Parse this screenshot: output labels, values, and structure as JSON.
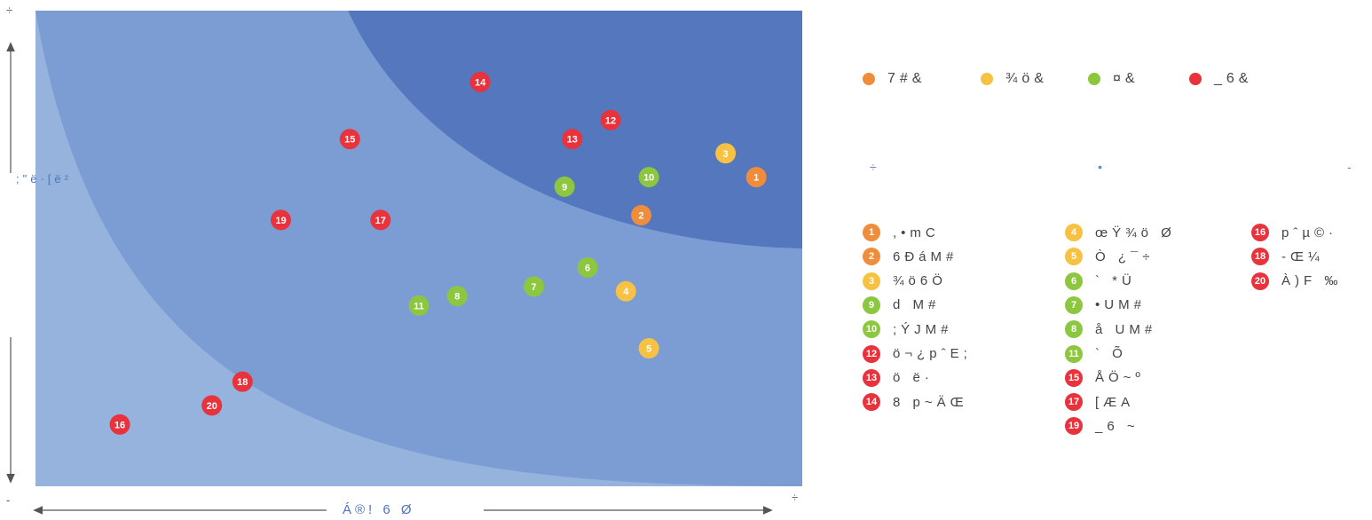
{
  "colors": {
    "orange": "#f08d3a",
    "yellow": "#f7c244",
    "green": "#8dc63f",
    "red": "#e8323c",
    "band_light": "#96b3de",
    "band_mid": "#7b9dd3",
    "band_dark": "#5477be"
  },
  "axis": {
    "y_label": ";\"ë·[ë²",
    "x_label": "Á®! 6 Ø",
    "y_top": "÷",
    "y_bottom": "-",
    "x_right": "÷"
  },
  "zones": {
    "left": "÷",
    "mid": "•",
    "right": "-"
  },
  "categories": [
    {
      "label": "7#&",
      "color": "#f08d3a"
    },
    {
      "label": "¾ö&",
      "color": "#f7c244"
    },
    {
      "label": "¤&",
      "color": "#8dc63f"
    },
    {
      "label": "_6&",
      "color": "#e8323c"
    }
  ],
  "chart_data": {
    "type": "scatter",
    "xlim": [
      0,
      100
    ],
    "ylim": [
      0,
      100
    ],
    "points": [
      {
        "id": "1",
        "x": 94,
        "y": 65,
        "cat": "orange",
        "label": ",•mC"
      },
      {
        "id": "2",
        "x": 79,
        "y": 57,
        "cat": "orange",
        "label": "6ÐáM#"
      },
      {
        "id": "3",
        "x": 90,
        "y": 70,
        "cat": "yellow",
        "label": "¾ö6Ö"
      },
      {
        "id": "4",
        "x": 77,
        "y": 41,
        "cat": "yellow",
        "label": "œŸ¾ö Ø"
      },
      {
        "id": "5",
        "x": 80,
        "y": 29,
        "cat": "yellow",
        "label": "Ò ¿¯÷"
      },
      {
        "id": "6",
        "x": 72,
        "y": 46,
        "cat": "green",
        "label": "` *Ü"
      },
      {
        "id": "7",
        "x": 65,
        "y": 42,
        "cat": "green",
        "label": "•UM#"
      },
      {
        "id": "8",
        "x": 55,
        "y": 40,
        "cat": "green",
        "label": "å UM#"
      },
      {
        "id": "9",
        "x": 69,
        "y": 63,
        "cat": "green",
        "label": "d M#"
      },
      {
        "id": "10",
        "x": 80,
        "y": 65,
        "cat": "green",
        "label": ";ÝJM#"
      },
      {
        "id": "11",
        "x": 50,
        "y": 38,
        "cat": "green",
        "label": "` Õ"
      },
      {
        "id": "12",
        "x": 75,
        "y": 77,
        "cat": "red",
        "label": "ö¬¿pˆE;"
      },
      {
        "id": "13",
        "x": 70,
        "y": 73,
        "cat": "red",
        "label": "ö ë·"
      },
      {
        "id": "14",
        "x": 58,
        "y": 85,
        "cat": "red",
        "label": "8 p~ÄŒ"
      },
      {
        "id": "15",
        "x": 41,
        "y": 73,
        "cat": "red",
        "label": "ÅÖ~º"
      },
      {
        "id": "16",
        "x": 11,
        "y": 13,
        "cat": "red",
        "label": "pˆµ©·"
      },
      {
        "id": "17",
        "x": 45,
        "y": 56,
        "cat": "red",
        "label": "[ÆA"
      },
      {
        "id": "18",
        "x": 27,
        "y": 22,
        "cat": "red",
        "label": "-Œ¼"
      },
      {
        "id": "19",
        "x": 32,
        "y": 56,
        "cat": "red",
        "label": "_6 ~"
      },
      {
        "id": "20",
        "x": 23,
        "y": 17,
        "cat": "red",
        "label": "À)F ‰"
      }
    ]
  }
}
